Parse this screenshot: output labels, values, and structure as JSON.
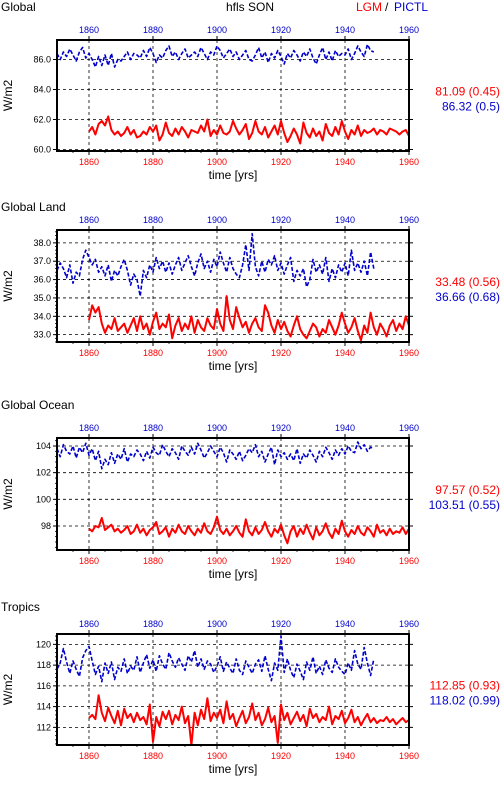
{
  "header": {
    "panel_title": "Global",
    "variable": "hfls SON",
    "legend_lgm": "LGM",
    "legend_sep": "/",
    "legend_pictl": "PICTL"
  },
  "colors": {
    "lgm": "#ff0000",
    "pictl": "#0000cc",
    "axis": "#000000",
    "grid": "#000000"
  },
  "chart_data": [
    {
      "type": "line",
      "title": "Global",
      "xlabel": "time [yrs]",
      "ylabel": "W/m2",
      "xlim": [
        1850,
        1960
      ],
      "ylim": [
        59.9,
        87.3
      ],
      "yticks": [
        60.0,
        62.0,
        84.0,
        86.0
      ],
      "ytick_labels": [
        "60.0",
        "62.0",
        "84.0",
        "86.0"
      ],
      "axis_break": {
        "gap_lower": 62.8,
        "gap_upper": 83.4,
        "offset": 20
      },
      "xticks": [
        1860,
        1880,
        1900,
        1920,
        1940,
        1960
      ],
      "top_xticks": [
        1860,
        1880,
        1900,
        1920,
        1940,
        1960
      ],
      "grid": true,
      "stats": {
        "lgm": "81.09 (0.45)",
        "pictl": "86.32 (0.5)"
      },
      "series": [
        {
          "name": "LGM",
          "color": "#ff0000",
          "style": "solid",
          "x_start": 1860,
          "values": [
            61.2,
            61.5,
            61.0,
            61.7,
            61.9,
            61.6,
            62.2,
            61.3,
            61.0,
            61.2,
            60.9,
            61.1,
            61.5,
            61.0,
            61.3,
            60.8,
            60.9,
            61.2,
            61.0,
            61.5,
            61.2,
            61.6,
            60.6,
            61.0,
            61.8,
            61.1,
            60.9,
            61.4,
            61.0,
            61.5,
            61.2,
            60.8,
            61.3,
            61.2,
            61.1,
            61.6,
            61.2,
            62.0,
            60.9,
            61.3,
            61.0,
            61.6,
            61.1,
            61.0,
            61.2,
            61.9,
            61.4,
            61.0,
            61.3,
            61.7,
            60.7,
            61.1,
            61.9,
            61.2,
            61.0,
            61.5,
            60.8,
            61.2,
            61.6,
            61.0,
            61.9,
            61.1,
            60.5,
            60.9,
            61.4,
            61.0,
            60.4,
            61.8,
            61.1,
            60.8,
            61.4,
            60.9,
            61.2,
            60.6,
            61.7,
            61.1,
            60.9,
            61.5,
            61.0,
            61.9,
            61.2,
            60.7,
            61.3,
            61.0,
            61.6,
            60.9,
            61.3,
            61.1,
            61.2,
            61.4,
            61.0,
            61.3,
            61.2,
            61.0,
            61.4,
            61.3,
            61.2,
            61.0,
            61.2,
            61.3,
            60.9
          ]
        },
        {
          "name": "PICTL",
          "color": "#0000cc",
          "style": "dashed",
          "x_start": 1850,
          "values": [
            86.4,
            86.0,
            86.5,
            86.2,
            86.7,
            86.3,
            85.9,
            86.5,
            86.8,
            86.1,
            86.4,
            86.0,
            85.5,
            86.2,
            85.6,
            86.3,
            85.6,
            86.4,
            85.5,
            86.0,
            85.9,
            86.2,
            86.5,
            86.0,
            86.4,
            86.3,
            86.1,
            86.6,
            86.2,
            86.8,
            86.4,
            85.8,
            86.3,
            86.1,
            86.6,
            86.9,
            86.2,
            86.5,
            86.0,
            86.4,
            86.7,
            86.1,
            86.3,
            86.5,
            86.2,
            86.8,
            86.4,
            86.0,
            86.5,
            86.3,
            86.9,
            86.6,
            86.1,
            86.4,
            86.7,
            86.2,
            86.5,
            86.0,
            86.3,
            86.6,
            86.0,
            85.9,
            86.3,
            86.8,
            86.1,
            86.5,
            85.8,
            86.4,
            86.1,
            86.6,
            86.2,
            85.7,
            86.4,
            86.1,
            86.6,
            86.3,
            85.9,
            86.5,
            86.2,
            86.7,
            86.1,
            85.7,
            86.3,
            86.8,
            86.0,
            86.5,
            85.9,
            86.6,
            86.2,
            86.4,
            86.3,
            86.7,
            86.0,
            86.4,
            86.9,
            86.5,
            86.2,
            87.0,
            86.6,
            86.5
          ]
        }
      ]
    },
    {
      "type": "line",
      "title": "Global Land",
      "xlabel": "time [yrs]",
      "ylabel": "W/m2",
      "xlim": [
        1850,
        1960
      ],
      "ylim": [
        32.6,
        38.7
      ],
      "yticks": [
        33.0,
        34.0,
        35.0,
        36.0,
        37.0,
        38.0
      ],
      "ytick_labels": [
        "33.0",
        "34.0",
        "35.0",
        "36.0",
        "37.0",
        "38.0"
      ],
      "xticks": [
        1860,
        1880,
        1900,
        1920,
        1940,
        1960
      ],
      "top_xticks": [
        1860,
        1880,
        1900,
        1920,
        1940,
        1960
      ],
      "grid": true,
      "stats": {
        "lgm": "33.48 (0.56)",
        "pictl": "36.66 (0.68)"
      },
      "series": [
        {
          "name": "LGM",
          "color": "#ff0000",
          "style": "solid",
          "x_start": 1860,
          "values": [
            33.8,
            34.6,
            34.2,
            34.5,
            33.6,
            33.1,
            33.5,
            33.3,
            33.9,
            33.2,
            33.4,
            33.6,
            33.1,
            33.5,
            33.9,
            33.2,
            34.0,
            33.3,
            33.6,
            33.0,
            33.7,
            34.2,
            33.3,
            33.6,
            33.4,
            34.1,
            32.8,
            33.5,
            33.9,
            33.2,
            33.6,
            33.3,
            34.0,
            33.1,
            33.8,
            33.4,
            33.2,
            33.9,
            33.5,
            33.3,
            34.4,
            33.6,
            33.2,
            35.1,
            33.8,
            33.3,
            34.5,
            33.9,
            33.4,
            33.7,
            33.1,
            33.6,
            33.9,
            33.4,
            33.2,
            34.6,
            34.2,
            33.5,
            33.1,
            33.8,
            33.3,
            33.7,
            33.2,
            32.9,
            33.5,
            34.0,
            33.3,
            33.0,
            32.8,
            33.2,
            33.6,
            33.4,
            32.9,
            33.3,
            33.1,
            33.8,
            33.4,
            33.0,
            33.5,
            34.2,
            33.6,
            33.1,
            33.4,
            33.9,
            33.2,
            32.7,
            33.5,
            33.1,
            34.2,
            33.4,
            33.0,
            33.6,
            33.3,
            32.9,
            33.5,
            33.8,
            33.2,
            33.6,
            33.3,
            34.0,
            33.5
          ]
        },
        {
          "name": "PICTL",
          "color": "#0000cc",
          "style": "dashed",
          "x_start": 1850,
          "values": [
            36.5,
            36.9,
            36.6,
            36.1,
            36.8,
            35.8,
            36.4,
            36.2,
            37.1,
            37.6,
            37.2,
            36.8,
            37.1,
            36.4,
            36.7,
            36.2,
            36.8,
            35.9,
            36.5,
            36.2,
            36.7,
            37.1,
            36.5,
            35.7,
            36.3,
            36.0,
            35.1,
            36.5,
            36.1,
            36.8,
            36.4,
            37.2,
            36.6,
            37.0,
            36.4,
            36.9,
            36.3,
            36.8,
            37.2,
            36.5,
            36.9,
            37.3,
            36.7,
            36.2,
            36.9,
            37.4,
            36.6,
            37.0,
            36.4,
            37.1,
            36.7,
            37.5,
            36.9,
            36.4,
            37.2,
            36.6,
            36.3,
            36.1,
            36.8,
            37.9,
            36.5,
            38.5,
            36.7,
            36.2,
            37.0,
            36.4,
            37.1,
            36.8,
            37.3,
            36.5,
            36.9,
            36.3,
            36.8,
            37.2,
            35.9,
            36.5,
            36.2,
            36.6,
            35.6,
            36.0,
            37.1,
            36.4,
            36.8,
            36.3,
            37.2,
            35.9,
            36.6,
            36.1,
            36.8,
            36.4,
            36.9,
            36.2,
            37.6,
            36.5,
            36.9,
            36.4,
            37.0,
            36.2,
            37.5,
            36.6
          ]
        }
      ]
    },
    {
      "type": "line",
      "title": "Global Ocean",
      "xlabel": "time [yrs]",
      "ylabel": "W/m2",
      "xlim": [
        1850,
        1960
      ],
      "ylim": [
        96.2,
        104.6
      ],
      "yticks": [
        98,
        100,
        102,
        104
      ],
      "ytick_labels": [
        "98",
        "100",
        "102",
        "104"
      ],
      "xticks": [
        1860,
        1880,
        1900,
        1920,
        1940,
        1960
      ],
      "top_xticks": [
        1860,
        1880,
        1900,
        1920,
        1940,
        1960
      ],
      "grid": true,
      "stats": {
        "lgm": "97.57 (0.52)",
        "pictl": "103.51 (0.55)"
      },
      "series": [
        {
          "name": "LGM",
          "color": "#ff0000",
          "style": "solid",
          "x_start": 1860,
          "values": [
            97.8,
            97.6,
            98.0,
            97.9,
            98.6,
            97.7,
            97.9,
            98.1,
            97.6,
            97.8,
            97.5,
            97.7,
            98.0,
            97.4,
            97.6,
            98.1,
            97.5,
            97.8,
            97.3,
            97.7,
            97.9,
            98.3,
            97.4,
            97.6,
            97.9,
            97.2,
            97.8,
            97.5,
            98.1,
            97.6,
            97.4,
            98.0,
            97.6,
            97.3,
            97.8,
            97.5,
            98.2,
            97.6,
            97.4,
            97.9,
            98.7,
            97.7,
            97.4,
            97.8,
            97.3,
            97.6,
            98.0,
            97.5,
            97.2,
            98.5,
            97.6,
            97.3,
            97.9,
            97.4,
            97.7,
            98.3,
            97.6,
            97.2,
            97.8,
            97.5,
            98.1,
            97.3,
            96.7,
            97.6,
            98.0,
            97.2,
            97.8,
            97.4,
            98.1,
            97.5,
            97.0,
            97.9,
            97.3,
            97.6,
            98.2,
            97.5,
            97.1,
            97.8,
            97.4,
            98.4,
            97.6,
            97.2,
            97.7,
            97.4,
            98.0,
            97.5,
            97.3,
            97.9,
            97.6,
            97.2,
            98.1,
            97.5,
            97.7,
            97.3,
            97.8,
            97.4,
            97.6,
            97.5,
            97.9,
            97.4,
            97.8
          ]
        },
        {
          "name": "PICTL",
          "color": "#0000cc",
          "style": "dashed",
          "x_start": 1850,
          "values": [
            103.8,
            103.2,
            104.1,
            103.6,
            103.4,
            104.0,
            103.1,
            103.9,
            103.5,
            104.2,
            103.3,
            103.8,
            102.9,
            103.6,
            102.3,
            103.0,
            102.6,
            103.5,
            102.7,
            103.4,
            103.0,
            103.8,
            102.8,
            103.4,
            103.2,
            103.7,
            103.4,
            102.9,
            103.6,
            103.1,
            103.9,
            103.5,
            103.3,
            104.1,
            103.6,
            103.2,
            103.8,
            103.5,
            103.0,
            104.0,
            103.6,
            103.3,
            103.9,
            103.4,
            104.2,
            103.7,
            103.1,
            103.5,
            104.0,
            103.6,
            103.2,
            103.9,
            103.5,
            102.8,
            103.7,
            103.4,
            103.0,
            103.6,
            102.9,
            103.3,
            103.8,
            103.5,
            104.1,
            103.2,
            103.6,
            102.8,
            103.4,
            103.9,
            102.6,
            103.7,
            103.2,
            103.5,
            103.0,
            103.4,
            102.9,
            103.8,
            102.7,
            103.4,
            103.1,
            103.7,
            103.3,
            102.8,
            103.6,
            103.2,
            103.9,
            103.5,
            103.0,
            103.7,
            103.3,
            103.8,
            103.4,
            104.0,
            103.6,
            103.5,
            104.3,
            103.8,
            104.1,
            103.6,
            103.9,
            103.8
          ]
        }
      ]
    },
    {
      "type": "line",
      "title": "Tropics",
      "xlabel": "time [yrs]",
      "ylabel": "W/m2",
      "xlim": [
        1850,
        1960
      ],
      "ylim": [
        110.3,
        121.0
      ],
      "yticks": [
        112,
        114,
        116,
        118,
        120
      ],
      "ytick_labels": [
        "112",
        "114",
        "116",
        "118",
        "120"
      ],
      "xticks": [
        1860,
        1880,
        1900,
        1920,
        1940,
        1960
      ],
      "top_xticks": [
        1860,
        1880,
        1900,
        1920,
        1940,
        1960
      ],
      "grid": true,
      "stats": {
        "lgm": "112.85 (0.93)",
        "pictl": "118.02 (0.99)"
      },
      "series": [
        {
          "name": "LGM",
          "color": "#ff0000",
          "style": "solid",
          "x_start": 1860,
          "values": [
            112.9,
            113.2,
            112.8,
            115.1,
            113.4,
            112.6,
            113.9,
            113.1,
            112.4,
            113.6,
            112.2,
            113.8,
            112.9,
            113.3,
            112.5,
            113.4,
            112.7,
            113.0,
            112.3,
            114.2,
            110.6,
            113.0,
            112.1,
            113.5,
            112.8,
            113.6,
            112.3,
            113.2,
            112.7,
            114.0,
            112.4,
            113.1,
            110.3,
            113.4,
            112.2,
            113.7,
            112.8,
            114.8,
            112.6,
            113.4,
            112.9,
            113.7,
            112.4,
            114.5,
            112.8,
            113.3,
            112.1,
            112.9,
            113.6,
            112.4,
            113.0,
            114.3,
            112.7,
            113.4,
            112.2,
            112.8,
            113.9,
            112.5,
            113.1,
            110.5,
            114.2,
            112.7,
            113.4,
            112.3,
            112.9,
            113.5,
            112.6,
            113.2,
            112.1,
            113.8,
            112.9,
            113.3,
            112.5,
            113.0,
            112.7,
            114.0,
            112.3,
            113.1,
            112.8,
            113.6,
            112.4,
            112.9,
            113.7,
            112.5,
            113.0,
            112.2,
            112.8,
            113.3,
            112.5,
            112.9,
            112.4,
            112.7,
            112.6,
            113.0,
            112.5,
            112.8,
            112.3,
            112.6,
            112.9,
            112.5,
            112.7
          ]
        },
        {
          "name": "PICTL",
          "color": "#0000cc",
          "style": "dashed",
          "x_start": 1850,
          "values": [
            117.6,
            118.2,
            119.6,
            118.3,
            117.2,
            118.4,
            117.6,
            116.9,
            118.7,
            119.4,
            119.8,
            118.4,
            117.1,
            117.9,
            116.4,
            118.2,
            117.2,
            118.3,
            116.6,
            117.8,
            117.4,
            118.6,
            117.2,
            117.9,
            117.5,
            118.8,
            117.3,
            118.2,
            119.0,
            117.7,
            118.5,
            117.4,
            118.9,
            118.1,
            117.6,
            119.2,
            118.4,
            117.8,
            118.7,
            118.1,
            117.5,
            118.9,
            118.3,
            119.4,
            117.8,
            118.6,
            117.6,
            118.4,
            118.1,
            117.3,
            117.9,
            118.8,
            117.4,
            118.3,
            117.7,
            117.2,
            118.6,
            117.5,
            117.1,
            118.4,
            117.8,
            117.2,
            118.1,
            118.5,
            117.4,
            118.9,
            117.6,
            116.5,
            118.2,
            117.5,
            120.8,
            117.3,
            118.6,
            117.5,
            116.8,
            118.1,
            117.4,
            116.6,
            118.3,
            117.5,
            118.8,
            117.2,
            117.9,
            117.1,
            118.5,
            117.7,
            117.3,
            118.6,
            117.8,
            117.4,
            117.1,
            118.2,
            117.5,
            119.4,
            118.1,
            117.6,
            119.7,
            118.2,
            117.0,
            118.6
          ]
        }
      ]
    }
  ]
}
